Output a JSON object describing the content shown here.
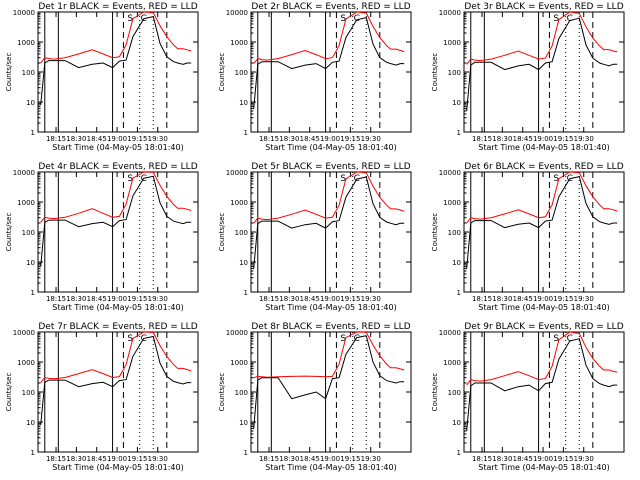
{
  "shared": {
    "ylabel": "Counts/sec",
    "xlabel": "Start Time (04-May-05 18:01:40)",
    "x_tick_labels": [
      "18:15",
      "18:30",
      "18:45",
      "19:00",
      "19:15",
      "19:30"
    ],
    "y_tick_labels": [
      "1",
      "10",
      "100",
      "1000",
      "10000"
    ],
    "legend_text": "BLACK = Events, RED = LLD",
    "annot_s": "S",
    "annot_c": "C",
    "colors": {
      "events": "#000000",
      "lld": "#ff0000",
      "axes": "#000000"
    }
  },
  "chart_data": [
    {
      "type": "line",
      "title": "Det 1r BLACK = Events, RED = LLD",
      "xlabel": "Start Time (04-May-05 18:01:40)",
      "ylabel": "Counts/sec",
      "ylim": [
        1,
        10000
      ],
      "yscale": "log",
      "x_minutes": [
        2,
        5,
        8,
        12,
        20,
        30,
        40,
        48,
        55,
        60,
        65,
        70,
        78,
        85,
        90,
        95,
        100,
        103,
        107,
        110,
        113
      ],
      "series": [
        {
          "name": "Events",
          "values": [
            8,
            200,
            240,
            240,
            240,
            140,
            180,
            200,
            140,
            230,
            250,
            1500,
            6000,
            7000,
            900,
            320,
            220,
            200,
            180,
            200,
            200
          ]
        },
        {
          "name": "LLD",
          "values": [
            200,
            300,
            280,
            270,
            300,
            400,
            550,
            400,
            300,
            320,
            800,
            6000,
            10000,
            9500,
            3500,
            1500,
            800,
            600,
            600,
            550,
            500
          ]
        }
      ]
    },
    {
      "type": "line",
      "title": "Det 2r BLACK = Events, RED = LLD",
      "xlabel": "Start Time (04-May-05 18:01:40)",
      "ylabel": "Counts/sec",
      "ylim": [
        1,
        10000
      ],
      "yscale": "log",
      "x_minutes": [
        2,
        5,
        8,
        12,
        20,
        30,
        40,
        48,
        55,
        60,
        65,
        70,
        78,
        85,
        90,
        95,
        100,
        103,
        107,
        110,
        113
      ],
      "series": [
        {
          "name": "Events",
          "values": [
            6,
            180,
            220,
            220,
            220,
            130,
            170,
            190,
            130,
            210,
            230,
            1400,
            5500,
            6500,
            850,
            300,
            210,
            190,
            170,
            190,
            190
          ]
        },
        {
          "name": "LLD",
          "values": [
            190,
            280,
            260,
            250,
            280,
            380,
            520,
            380,
            280,
            300,
            760,
            5800,
            10000,
            9200,
            3300,
            1400,
            760,
            580,
            580,
            520,
            480
          ]
        }
      ]
    },
    {
      "type": "line",
      "title": "Det 3r BLACK = Events, RED = LLD",
      "xlabel": "Start Time (04-May-05 18:01:40)",
      "ylabel": "Counts/sec",
      "ylim": [
        1,
        10000
      ],
      "yscale": "log",
      "x_minutes": [
        2,
        5,
        8,
        12,
        20,
        30,
        40,
        48,
        55,
        60,
        65,
        70,
        78,
        85,
        90,
        95,
        100,
        103,
        107,
        110,
        113
      ],
      "series": [
        {
          "name": "Events",
          "values": [
            5,
            170,
            210,
            210,
            210,
            120,
            160,
            180,
            120,
            200,
            220,
            1300,
            5200,
            6200,
            800,
            290,
            200,
            180,
            160,
            180,
            180
          ]
        },
        {
          "name": "LLD",
          "values": [
            180,
            270,
            250,
            240,
            270,
            360,
            500,
            360,
            270,
            290,
            740,
            5600,
            10000,
            9000,
            3200,
            1350,
            740,
            560,
            560,
            500,
            470
          ]
        }
      ]
    },
    {
      "type": "line",
      "title": "Det 4r BLACK = Events, RED = LLD",
      "xlabel": "Start Time (04-May-05 18:01:40)",
      "ylabel": "Counts/sec",
      "ylim": [
        1,
        10000
      ],
      "yscale": "log",
      "x_minutes": [
        2,
        5,
        8,
        12,
        20,
        30,
        40,
        48,
        55,
        60,
        65,
        70,
        78,
        85,
        90,
        95,
        100,
        103,
        107,
        110,
        113
      ],
      "series": [
        {
          "name": "Events",
          "values": [
            7,
            210,
            250,
            250,
            250,
            150,
            190,
            210,
            150,
            240,
            260,
            1600,
            6200,
            7200,
            950,
            330,
            230,
            210,
            190,
            210,
            210
          ]
        },
        {
          "name": "LLD",
          "values": [
            210,
            310,
            290,
            280,
            310,
            420,
            600,
            420,
            310,
            330,
            850,
            6200,
            10000,
            9700,
            3600,
            1550,
            820,
            620,
            620,
            570,
            520
          ]
        }
      ]
    },
    {
      "type": "line",
      "title": "Det 5r BLACK = Events, RED = LLD",
      "xlabel": "Start Time (04-May-05 18:01:40)",
      "ylabel": "Counts/sec",
      "ylim": [
        1,
        10000
      ],
      "yscale": "log",
      "x_minutes": [
        2,
        5,
        8,
        12,
        20,
        30,
        40,
        48,
        55,
        60,
        65,
        70,
        78,
        85,
        90,
        95,
        100,
        103,
        107,
        110,
        113
      ],
      "series": [
        {
          "name": "Events",
          "values": [
            6,
            190,
            230,
            230,
            230,
            135,
            175,
            195,
            135,
            220,
            240,
            1450,
            5800,
            6800,
            880,
            310,
            215,
            195,
            175,
            195,
            195
          ]
        },
        {
          "name": "LLD",
          "values": [
            195,
            290,
            270,
            260,
            290,
            390,
            540,
            390,
            290,
            310,
            780,
            5900,
            10000,
            9400,
            3400,
            1450,
            780,
            590,
            590,
            540,
            490
          ]
        }
      ]
    },
    {
      "type": "line",
      "title": "Det 6r BLACK = Events, RED = LLD",
      "xlabel": "Start Time (04-May-05 18:01:40)",
      "ylabel": "Counts/sec",
      "ylim": [
        1,
        10000
      ],
      "yscale": "log",
      "x_minutes": [
        2,
        5,
        8,
        12,
        20,
        30,
        40,
        48,
        55,
        60,
        65,
        70,
        78,
        85,
        90,
        95,
        100,
        103,
        107,
        110,
        113
      ],
      "series": [
        {
          "name": "Events",
          "values": [
            6,
            200,
            240,
            240,
            240,
            140,
            180,
            200,
            140,
            230,
            250,
            1500,
            6000,
            7000,
            900,
            320,
            220,
            200,
            180,
            200,
            200
          ]
        },
        {
          "name": "LLD",
          "values": [
            200,
            300,
            280,
            270,
            300,
            400,
            550,
            400,
            300,
            320,
            800,
            6000,
            10000,
            9500,
            3500,
            1500,
            800,
            600,
            600,
            550,
            500
          ]
        }
      ]
    },
    {
      "type": "line",
      "title": "Det 7r BLACK = Events, RED = LLD",
      "xlabel": "Start Time (04-May-05 18:01:40)",
      "ylabel": "Counts/sec",
      "ylim": [
        1,
        10000
      ],
      "yscale": "log",
      "x_minutes": [
        2,
        5,
        8,
        12,
        20,
        30,
        40,
        48,
        55,
        60,
        65,
        70,
        78,
        85,
        90,
        95,
        100,
        103,
        107,
        110,
        113
      ],
      "series": [
        {
          "name": "Events",
          "values": [
            8,
            210,
            250,
            250,
            250,
            150,
            190,
            210,
            150,
            240,
            260,
            1550,
            6100,
            7100,
            920,
            330,
            225,
            205,
            185,
            205,
            205
          ]
        },
        {
          "name": "LLD",
          "values": [
            205,
            305,
            285,
            275,
            305,
            410,
            560,
            410,
            305,
            325,
            820,
            6100,
            10000,
            9600,
            3550,
            1520,
            810,
            610,
            610,
            560,
            510
          ]
        }
      ]
    },
    {
      "type": "line",
      "title": "Det 8r BLACK = Events, RED = LLD",
      "xlabel": "Start Time (04-May-05 18:01:40)",
      "ylabel": "Counts/sec",
      "ylim": [
        1,
        10000
      ],
      "yscale": "log",
      "x_minutes": [
        2,
        5,
        8,
        12,
        20,
        30,
        40,
        48,
        55,
        60,
        65,
        70,
        78,
        85,
        90,
        95,
        100,
        103,
        107,
        110,
        113
      ],
      "series": [
        {
          "name": "Events",
          "values": [
            6,
            250,
            300,
            300,
            300,
            60,
            80,
            100,
            60,
            280,
            300,
            1800,
            6500,
            7500,
            1000,
            350,
            240,
            220,
            200,
            220,
            220
          ]
        },
        {
          "name": "LLD",
          "values": [
            300,
            330,
            320,
            310,
            320,
            330,
            340,
            330,
            320,
            330,
            850,
            6500,
            10000,
            9800,
            3700,
            1600,
            850,
            640,
            640,
            590,
            540
          ]
        }
      ]
    },
    {
      "type": "line",
      "title": "Det 9r BLACK = Events, RED = LLD",
      "xlabel": "Start Time (04-May-05 18:01:40)",
      "ylabel": "Counts/sec",
      "ylim": [
        1,
        10000
      ],
      "yscale": "log",
      "x_minutes": [
        2,
        5,
        8,
        12,
        20,
        30,
        40,
        48,
        55,
        60,
        65,
        70,
        78,
        85,
        90,
        95,
        100,
        103,
        107,
        110,
        113
      ],
      "series": [
        {
          "name": "Events",
          "values": [
            5,
            160,
            200,
            200,
            200,
            110,
            150,
            170,
            110,
            190,
            210,
            1250,
            5000,
            6000,
            780,
            280,
            190,
            170,
            150,
            170,
            170
          ]
        },
        {
          "name": "LLD",
          "values": [
            170,
            260,
            240,
            230,
            260,
            350,
            480,
            350,
            260,
            280,
            720,
            5500,
            10000,
            8900,
            3100,
            1300,
            720,
            540,
            540,
            490,
            460
          ]
        }
      ]
    }
  ],
  "markers_minutes": {
    "solid": [
      5,
      15,
      55
    ],
    "dashed": [
      63,
      95
    ],
    "dotted": [
      75,
      85
    ]
  },
  "annot_minutes": {
    "s": 68,
    "c": 78
  }
}
